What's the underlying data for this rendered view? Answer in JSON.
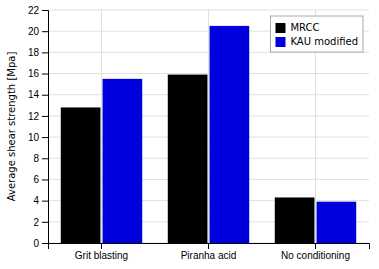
{
  "chart_data": {
    "type": "bar",
    "categories": [
      "Grit blasting",
      "Piranha acid",
      "No conditioning"
    ],
    "series": [
      {
        "name": "MRCC",
        "color": "#000000",
        "values": [
          12.8,
          15.9,
          4.3
        ]
      },
      {
        "name": "KAU modified",
        "color": "#0000dd",
        "values": [
          15.5,
          20.5,
          3.9
        ]
      }
    ],
    "ylabel": "Average shear strength [Mpa]",
    "ylim": [
      0,
      22
    ],
    "yticks": [
      0,
      2,
      4,
      6,
      8,
      10,
      12,
      14,
      16,
      18,
      20,
      22
    ],
    "grid": true,
    "legend": "upper right"
  }
}
